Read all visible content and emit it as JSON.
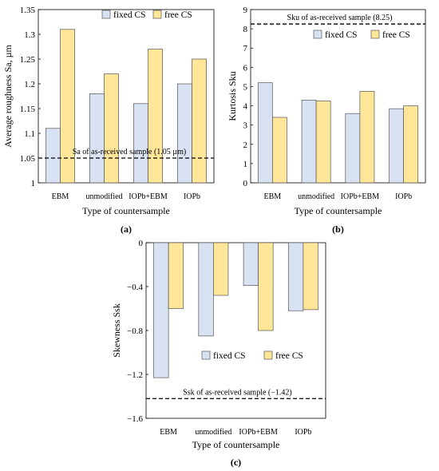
{
  "colors": {
    "fixed": "#d9e2f3",
    "free": "#ffe699",
    "stroke": "#555555"
  },
  "chart_data": [
    {
      "type": "bar",
      "panel_label": "(a)",
      "categories": [
        "EBM",
        "unmodified",
        "IOPb+EBM",
        "IOPb"
      ],
      "series": [
        {
          "name": "fixed CS",
          "values": [
            1.11,
            1.18,
            1.16,
            1.2
          ]
        },
        {
          "name": "free CS",
          "values": [
            1.31,
            1.22,
            1.27,
            1.25
          ]
        }
      ],
      "xlabel": "Type of countersample",
      "ylabel": "Average roughness Sa, µm",
      "ylim": [
        1,
        1.35
      ],
      "yticks": [
        1,
        1.05,
        1.1,
        1.15,
        1.2,
        1.25,
        1.3,
        1.35
      ],
      "yticklabels": [
        "1",
        "1.05",
        "1.1",
        "1.15",
        "1.2",
        "1.25",
        "1.3",
        "1.35"
      ],
      "reference": {
        "value": 1.05,
        "label": "Sa of as-received sample (1.05 µm)",
        "label_pos": "above-line"
      },
      "legend": "top",
      "grid": false
    },
    {
      "type": "bar",
      "panel_label": "(b)",
      "categories": [
        "EBM",
        "unmodified",
        "IOPb+EBM",
        "IOPb"
      ],
      "series": [
        {
          "name": "fixed CS",
          "values": [
            5.2,
            4.3,
            3.6,
            3.85
          ]
        },
        {
          "name": "free CS",
          "values": [
            3.4,
            4.25,
            4.75,
            4.0
          ]
        }
      ],
      "xlabel": "Type of countersample",
      "ylabel": "Kurtosis Sku",
      "ylim": [
        0,
        9
      ],
      "yticks": [
        0,
        1,
        2,
        3,
        4,
        5,
        6,
        7,
        8,
        9
      ],
      "yticklabels": [
        "0",
        "1",
        "2",
        "3",
        "4",
        "5",
        "6",
        "7",
        "8",
        "9"
      ],
      "reference": {
        "value": 8.25,
        "label": "Sku of as-received sample (8.25)",
        "label_pos": "above-line"
      },
      "legend": "top",
      "grid": false
    },
    {
      "type": "bar",
      "panel_label": "(c)",
      "categories": [
        "EBM",
        "unmodified",
        "IOPb+EBM",
        "IOPb"
      ],
      "series": [
        {
          "name": "fixed CS",
          "values": [
            -1.23,
            -0.85,
            -0.39,
            -0.62
          ]
        },
        {
          "name": "free CS",
          "values": [
            -0.6,
            -0.48,
            -0.8,
            -0.61
          ]
        }
      ],
      "xlabel": "Type of countersample",
      "ylabel": "Skewness Ssk",
      "ylim": [
        -1.6,
        0
      ],
      "yticks": [
        -1.6,
        -1.2,
        -0.8,
        -0.4,
        0
      ],
      "yticklabels": [
        "−1.6",
        "−1.2",
        "−0.8",
        "−0.4",
        "0"
      ],
      "reference": {
        "value": -1.42,
        "label": "Ssk of as-received sample (−1.42)",
        "label_pos": "above-line"
      },
      "legend": "bottom",
      "grid": false
    }
  ]
}
